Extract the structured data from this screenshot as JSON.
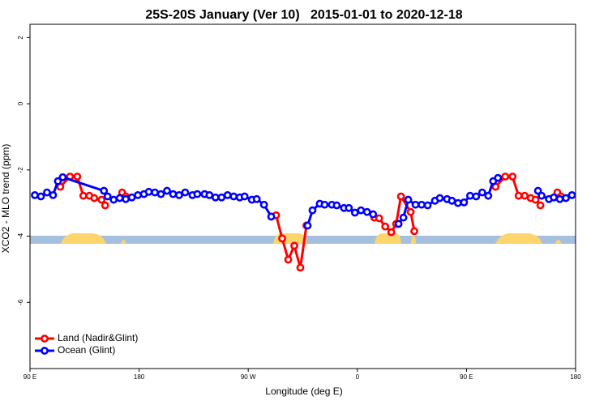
{
  "chart_data": {
    "type": "line",
    "title": "25S-20S January (Ver 10)   2015-01-01 to 2020-12-18",
    "xlabel": "Longitude (deg E)",
    "ylabel": "XCO2 - MLO trend (ppm)",
    "xlim": [
      90,
      540
    ],
    "xticks": [
      {
        "value": 90,
        "label": "90 E"
      },
      180,
      {
        "value": 270,
        "label": "90 W"
      },
      {
        "value": 360,
        "label": "0"
      },
      {
        "value": 450,
        "label": "90 E"
      },
      {
        "value": 540,
        "label": "180"
      }
    ],
    "ylim": [
      -8,
      2.4
    ],
    "yticks": [
      2,
      0,
      -2,
      -4,
      -6
    ],
    "legend": "lower left",
    "series": [
      {
        "name": "Land (Nadir&Glint)",
        "color": "#ff0000",
        "x": [
          115,
          123,
          129,
          134,
          139,
          143,
          149,
          152,
          null,
          166,
          169,
          null,
          293,
          298,
          303,
          308,
          313,
          318,
          null,
          374,
          378,
          383,
          388,
          392,
          396,
          404,
          407,
          null,
          474,
          482,
          488,
          493,
          498,
          503,
          507,
          511,
          null,
          525,
          528
        ],
        "values": [
          -2.51,
          -2.2,
          -2.2,
          -2.78,
          -2.78,
          -2.85,
          -2.9,
          -3.07,
          null,
          -2.68,
          -2.8,
          null,
          -3.37,
          -4.07,
          -4.71,
          -4.29,
          -4.95,
          -3.68,
          null,
          -3.44,
          -3.46,
          -3.71,
          -3.88,
          -3.63,
          -2.8,
          -3.27,
          -3.85,
          null,
          -2.51,
          -2.2,
          -2.2,
          -2.78,
          -2.78,
          -2.85,
          -2.9,
          -3.07,
          null,
          -2.68,
          -2.8
        ]
      },
      {
        "name": "Ocean (Glint)",
        "color": "#0000ff",
        "x": [
          94,
          99,
          104,
          109,
          113,
          117,
          151,
          154,
          159,
          164,
          169,
          174,
          179,
          184,
          188,
          193,
          198,
          203,
          208,
          213,
          218,
          224,
          228,
          234,
          238,
          243,
          248,
          253,
          258,
          263,
          267,
          273,
          277,
          283,
          289,
          null,
          319,
          323,
          329,
          333,
          339,
          343,
          349,
          353,
          358,
          363,
          368,
          373,
          null,
          394,
          398,
          402,
          408,
          413,
          418,
          424,
          428,
          434,
          438,
          443,
          448,
          453,
          458,
          463,
          468,
          472,
          476,
          null,
          509,
          512,
          518,
          522,
          527,
          532,
          537
        ],
        "values": [
          -2.76,
          -2.8,
          -2.68,
          -2.76,
          -2.34,
          -2.22,
          -2.63,
          -2.8,
          -2.9,
          -2.85,
          -2.88,
          -2.83,
          -2.76,
          -2.73,
          -2.66,
          -2.68,
          -2.73,
          -2.63,
          -2.73,
          -2.76,
          -2.68,
          -2.76,
          -2.73,
          -2.73,
          -2.76,
          -2.83,
          -2.83,
          -2.76,
          -2.8,
          -2.83,
          -2.8,
          -2.9,
          -2.88,
          -3.05,
          -3.41,
          null,
          -3.68,
          -3.22,
          -3.02,
          -3.05,
          -3.05,
          -3.07,
          -3.15,
          -3.15,
          -3.29,
          -3.22,
          -3.27,
          -3.34,
          null,
          -3.63,
          -3.44,
          -2.9,
          -3.05,
          -3.05,
          -3.07,
          -2.93,
          -2.85,
          -2.88,
          -2.93,
          -3.0,
          -2.98,
          -2.78,
          -2.8,
          -2.68,
          -2.78,
          -2.34,
          -2.24,
          null,
          -2.63,
          -2.78,
          -2.88,
          -2.83,
          -2.88,
          -2.85,
          -2.76
        ]
      }
    ]
  }
}
